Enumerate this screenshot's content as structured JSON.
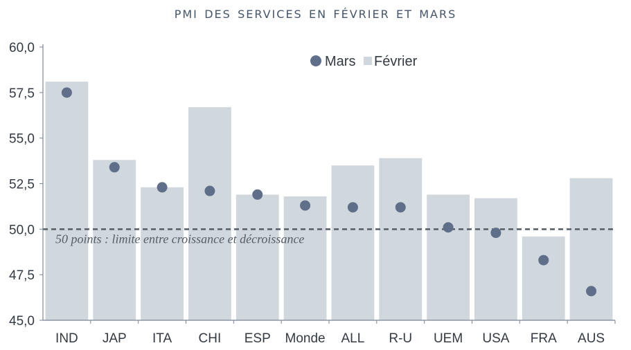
{
  "chart_data": {
    "type": "bar",
    "title": "PMI des services en février et mars",
    "categories": [
      "IND",
      "JAP",
      "ITA",
      "CHI",
      "ESP",
      "Monde",
      "ALL",
      "R-U",
      "UEM",
      "USA",
      "FRA",
      "AUS"
    ],
    "series": [
      {
        "name": "Février",
        "kind": "bar",
        "values": [
          58.1,
          53.8,
          52.3,
          56.7,
          51.9,
          51.8,
          53.5,
          53.9,
          51.9,
          51.7,
          49.6,
          52.8
        ]
      },
      {
        "name": "Mars",
        "kind": "point",
        "values": [
          57.5,
          53.4,
          52.3,
          52.1,
          51.9,
          51.3,
          51.2,
          51.2,
          50.1,
          49.8,
          48.3,
          46.6
        ]
      }
    ],
    "ylim": [
      45,
      60
    ],
    "yticks": [
      45,
      47.5,
      50,
      52.5,
      55,
      57.5,
      60
    ],
    "ytick_labels": [
      "45,0",
      "47,5",
      "50,0",
      "52,5",
      "55,0",
      "57,5",
      "60,0"
    ],
    "xlabel": "",
    "ylabel": "",
    "reference_line": {
      "value": 50,
      "label": "50 points : limite entre croissance et décroissance"
    },
    "legend_position": "top-center",
    "colors": {
      "bar": "#d0d8de",
      "point": "#5f6f8a",
      "axis": "#7a8594",
      "reference": "#555c66"
    }
  }
}
